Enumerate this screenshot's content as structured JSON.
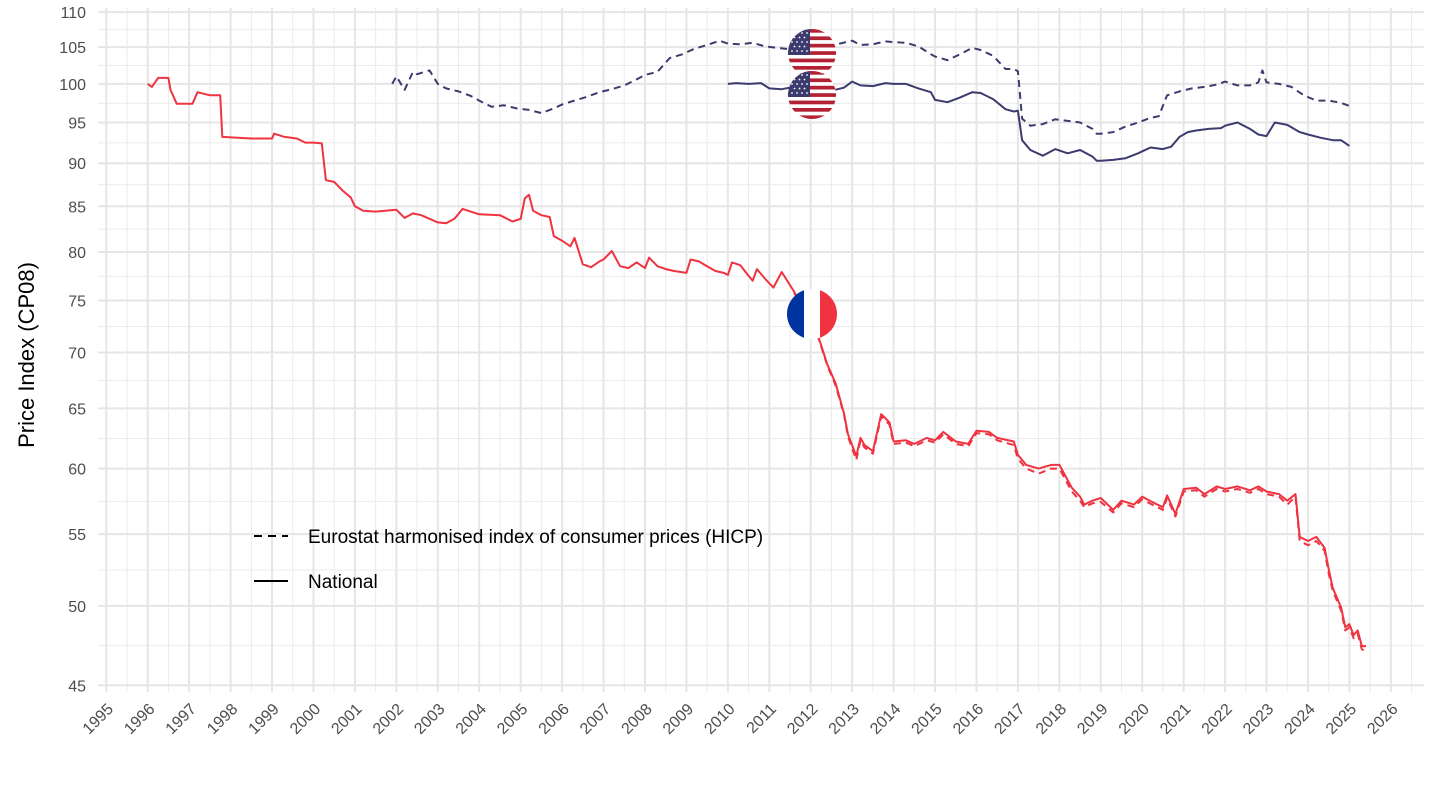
{
  "chart_data": {
    "type": "line",
    "title": "",
    "xlabel": "",
    "ylabel": "Price Index (CP08)",
    "y_scale": "log",
    "xlim": [
      1994.8,
      2026.8
    ],
    "ylim": [
      44.6,
      110.6
    ],
    "x_ticks": [
      1995,
      1996,
      1997,
      1998,
      1999,
      2000,
      2001,
      2002,
      2003,
      2004,
      2005,
      2006,
      2007,
      2008,
      2009,
      2010,
      2011,
      2012,
      2013,
      2014,
      2015,
      2016,
      2017,
      2018,
      2019,
      2020,
      2021,
      2022,
      2023,
      2024,
      2025,
      2026
    ],
    "x_tick_labels": [
      "1995",
      "1996",
      "1997",
      "1998",
      "1999",
      "2000",
      "2001",
      "2002",
      "2003",
      "2004",
      "2005",
      "2006",
      "2007",
      "2008",
      "2009",
      "2010",
      "2011",
      "2012",
      "2013",
      "2014",
      "2015",
      "2016",
      "2017",
      "2018",
      "2019",
      "2020",
      "2021",
      "2022",
      "2023",
      "2024",
      "2025",
      "2026"
    ],
    "y_ticks": [
      45,
      50,
      55,
      60,
      65,
      70,
      75,
      80,
      85,
      90,
      95,
      100,
      105,
      110
    ],
    "y_tick_labels": [
      "45",
      "50",
      "55",
      "60",
      "65",
      "70",
      "75",
      "80",
      "85",
      "90",
      "95",
      "100",
      "105",
      "110"
    ],
    "legend": {
      "position": "inside-bottom-left",
      "entries": [
        {
          "label": "Eurostat harmonised index of consumer prices (HICP)",
          "linetype": "dashed"
        },
        {
          "label": "National",
          "linetype": "solid"
        }
      ]
    },
    "annotations": [
      {
        "type": "flag",
        "name": "United States",
        "x": 2012.0,
        "y": 104.5
      },
      {
        "type": "flag",
        "name": "United States",
        "x": 2012.0,
        "y": 100.0
      },
      {
        "type": "flag",
        "name": "France",
        "x": 2012.0,
        "y": 74.0
      }
    ],
    "series": [
      {
        "name": "France - National",
        "country": "France",
        "linetype": "solid",
        "color": "#ef3340",
        "x": [
          1996.0,
          1996.1,
          1996.25,
          1996.5,
          1996.55,
          1996.7,
          1997.0,
          1997.08,
          1997.2,
          1997.5,
          1997.75,
          1997.8,
          1998.5,
          1999.0,
          1999.05,
          1999.3,
          1999.6,
          1999.8,
          2000.0,
          2000.2,
          2000.3,
          2000.5,
          2000.7,
          2000.9,
          2001.0,
          2001.2,
          2001.5,
          2002.0,
          2002.2,
          2002.4,
          2002.6,
          2003.0,
          2003.2,
          2003.4,
          2003.6,
          2004.0,
          2004.5,
          2004.8,
          2005.0,
          2005.1,
          2005.2,
          2005.3,
          2005.5,
          2005.7,
          2005.8,
          2006.0,
          2006.2,
          2006.3,
          2006.5,
          2006.7,
          2006.9,
          2007.0,
          2007.2,
          2007.4,
          2007.6,
          2007.8,
          2008.0,
          2008.1,
          2008.3,
          2008.5,
          2008.7,
          2009.0,
          2009.1,
          2009.3,
          2009.5,
          2009.7,
          2009.9,
          2010.0,
          2010.1,
          2010.3,
          2010.5,
          2010.6,
          2010.7,
          2010.9,
          2011.1,
          2011.3,
          2011.6,
          2011.9,
          2012.2,
          2012.4,
          2012.6,
          2012.8,
          2012.9,
          2013.1,
          2013.2,
          2013.3,
          2013.5,
          2013.7,
          2013.9,
          2014.0,
          2014.3,
          2014.5,
          2014.8,
          2015.0,
          2015.2,
          2015.5,
          2015.8,
          2016.0,
          2016.3,
          2016.5,
          2016.9,
          2017.0,
          2017.2,
          2017.5,
          2017.8,
          2018.0,
          2018.3,
          2018.5,
          2018.6,
          2018.8,
          2019.0,
          2019.3,
          2019.5,
          2019.8,
          2020.0,
          2020.3,
          2020.5,
          2020.6,
          2020.8,
          2021.0,
          2021.3,
          2021.5,
          2021.8,
          2022.0,
          2022.3,
          2022.6,
          2022.8,
          2023.0,
          2023.3,
          2023.5,
          2023.7,
          2023.8,
          2024.0,
          2024.2,
          2024.4,
          2024.5,
          2024.6,
          2024.8,
          2024.9,
          2025.0,
          2025.1,
          2025.2,
          2025.3,
          2025.4
        ],
        "y": [
          100.0,
          99.6,
          100.8,
          100.8,
          99.2,
          97.4,
          97.4,
          97.4,
          98.9,
          98.5,
          98.5,
          93.2,
          93.0,
          93.0,
          93.6,
          93.2,
          93.0,
          92.5,
          92.5,
          92.4,
          88.0,
          87.8,
          86.8,
          86.0,
          85.0,
          84.5,
          84.4,
          84.6,
          83.7,
          84.2,
          84.0,
          83.2,
          83.1,
          83.6,
          84.7,
          84.1,
          84.0,
          83.3,
          83.6,
          85.9,
          86.3,
          84.5,
          84.0,
          83.8,
          81.7,
          81.2,
          80.6,
          81.5,
          78.7,
          78.4,
          79.0,
          79.2,
          80.1,
          78.5,
          78.3,
          78.9,
          78.3,
          79.4,
          78.5,
          78.2,
          78.0,
          77.8,
          79.2,
          79.0,
          78.5,
          78.0,
          77.8,
          77.6,
          78.9,
          78.6,
          77.5,
          77.0,
          78.2,
          77.2,
          76.3,
          77.9,
          75.9,
          73.5,
          71.3,
          68.9,
          67.2,
          64.6,
          62.8,
          61.0,
          62.5,
          61.9,
          61.4,
          64.5,
          63.8,
          62.2,
          62.3,
          62.0,
          62.5,
          62.3,
          63.0,
          62.2,
          62.0,
          63.1,
          63.0,
          62.5,
          62.2,
          61.1,
          60.3,
          60.0,
          60.3,
          60.3,
          58.5,
          57.8,
          57.2,
          57.5,
          57.7,
          56.8,
          57.5,
          57.2,
          57.8,
          57.3,
          57.0,
          57.9,
          56.5,
          58.4,
          58.5,
          58.0,
          58.6,
          58.4,
          58.6,
          58.3,
          58.6,
          58.2,
          58.0,
          57.5,
          58.0,
          54.8,
          54.5,
          54.8,
          54.0,
          52.5,
          51.2,
          49.9,
          48.6,
          48.8,
          48.1,
          48.4,
          47.4,
          47.4
        ]
      },
      {
        "name": "France - HICP",
        "country": "France",
        "linetype": "dashed",
        "color": "#ef3340",
        "x": [
          2011.6,
          2011.9,
          2012.2,
          2012.4,
          2012.6,
          2012.8,
          2012.9,
          2013.1,
          2013.2,
          2013.3,
          2013.5,
          2013.7,
          2013.9,
          2014.0,
          2014.3,
          2014.5,
          2014.8,
          2015.0,
          2015.2,
          2015.5,
          2015.8,
          2016.0,
          2016.3,
          2016.5,
          2016.9,
          2017.0,
          2017.2,
          2017.5,
          2017.8,
          2018.0,
          2018.3,
          2018.5,
          2018.6,
          2018.8,
          2019.0,
          2019.3,
          2019.5,
          2019.8,
          2020.0,
          2020.3,
          2020.5,
          2020.6,
          2020.8,
          2021.0,
          2021.3,
          2021.5,
          2021.8,
          2022.0,
          2022.3,
          2022.6,
          2022.8,
          2023.0,
          2023.3,
          2023.5,
          2023.7,
          2023.8,
          2024.0,
          2024.2,
          2024.4,
          2024.5,
          2024.6,
          2024.8,
          2024.9,
          2025.0,
          2025.1,
          2025.2,
          2025.3,
          2025.4
        ],
        "y": [
          75.8,
          73.5,
          71.2,
          68.8,
          67.0,
          64.5,
          62.6,
          60.7,
          62.3,
          61.7,
          61.2,
          64.3,
          63.6,
          62.0,
          62.1,
          61.8,
          62.3,
          62.1,
          62.8,
          62.0,
          61.8,
          62.9,
          62.8,
          62.3,
          61.9,
          60.8,
          60.0,
          59.6,
          60.0,
          60.0,
          58.2,
          57.5,
          57.0,
          57.3,
          57.4,
          56.6,
          57.3,
          57.0,
          57.6,
          57.1,
          56.8,
          57.7,
          56.3,
          58.2,
          58.3,
          57.8,
          58.4,
          58.2,
          58.4,
          58.1,
          58.4,
          58.0,
          57.8,
          57.2,
          57.8,
          54.5,
          54.2,
          54.5,
          53.8,
          52.2,
          51.0,
          49.7,
          48.4,
          48.6,
          47.9,
          48.2,
          47.2,
          47.1
        ]
      },
      {
        "name": "United States - National",
        "country": "United States",
        "linetype": "solid",
        "color": "#3c3b6e",
        "x": [
          2010.0,
          2010.2,
          2010.5,
          2010.8,
          2011.0,
          2011.3,
          2011.6,
          2011.9,
          2012.2,
          2012.5,
          2012.8,
          2013.0,
          2013.2,
          2013.5,
          2013.8,
          2014.0,
          2014.3,
          2014.6,
          2014.9,
          2015.0,
          2015.3,
          2015.6,
          2015.9,
          2016.1,
          2016.4,
          2016.7,
          2016.9,
          2017.0,
          2017.1,
          2017.3,
          2017.6,
          2017.9,
          2018.2,
          2018.5,
          2018.8,
          2018.9,
          2019.0,
          2019.3,
          2019.6,
          2019.9,
          2020.2,
          2020.5,
          2020.7,
          2020.9,
          2021.1,
          2021.3,
          2021.6,
          2021.9,
          2022.0,
          2022.3,
          2022.6,
          2022.8,
          2023.0,
          2023.2,
          2023.5,
          2023.8,
          2024.0,
          2024.3,
          2024.6,
          2024.8,
          2025.0
        ],
        "y": [
          100.0,
          100.1,
          100.0,
          100.1,
          99.4,
          99.3,
          99.6,
          99.3,
          99.2,
          99.1,
          99.5,
          100.3,
          99.8,
          99.7,
          100.1,
          100.0,
          100.0,
          99.4,
          98.9,
          97.9,
          97.6,
          98.2,
          98.9,
          98.8,
          98.0,
          96.7,
          96.4,
          96.5,
          92.8,
          91.6,
          90.9,
          91.7,
          91.2,
          91.6,
          90.8,
          90.3,
          90.3,
          90.4,
          90.6,
          91.2,
          91.9,
          91.7,
          92.0,
          93.2,
          93.8,
          94.0,
          94.2,
          94.3,
          94.6,
          95.0,
          94.2,
          93.5,
          93.3,
          95.0,
          94.7,
          93.8,
          93.5,
          93.1,
          92.8,
          92.8,
          92.1
        ]
      },
      {
        "name": "United States - HICP",
        "country": "United States",
        "linetype": "dashed",
        "color": "#3c3b6e",
        "x": [
          2001.9,
          2002.0,
          2002.2,
          2002.4,
          2002.5,
          2002.8,
          2003.0,
          2003.2,
          2003.5,
          2003.8,
          2004.0,
          2004.3,
          2004.6,
          2004.9,
          2005.2,
          2005.5,
          2005.8,
          2006.0,
          2006.3,
          2006.6,
          2006.9,
          2007.2,
          2007.5,
          2007.8,
          2008.0,
          2008.3,
          2008.6,
          2008.9,
          2009.2,
          2009.5,
          2009.8,
          2010.0,
          2010.3,
          2010.6,
          2010.9,
          2011.2,
          2011.5,
          2011.8,
          2012.1,
          2012.4,
          2012.7,
          2013.0,
          2013.2,
          2013.5,
          2013.8,
          2014.0,
          2014.3,
          2014.6,
          2014.9,
          2015.0,
          2015.3,
          2015.6,
          2015.9,
          2016.1,
          2016.4,
          2016.7,
          2016.9,
          2017.0,
          2017.1,
          2017.3,
          2017.6,
          2017.9,
          2018.2,
          2018.5,
          2018.8,
          2018.9,
          2019.0,
          2019.3,
          2019.6,
          2019.9,
          2020.2,
          2020.4,
          2020.6,
          2020.9,
          2021.2,
          2021.5,
          2021.8,
          2022.0,
          2022.3,
          2022.6,
          2022.8,
          2022.9,
          2023.0,
          2023.3,
          2023.6,
          2023.9,
          2024.2,
          2024.5,
          2024.8,
          2025.0
        ],
        "y": [
          100.0,
          101.0,
          99.2,
          101.6,
          101.3,
          101.8,
          100.0,
          99.4,
          99.0,
          98.4,
          97.8,
          97.0,
          97.2,
          96.8,
          96.6,
          96.2,
          96.8,
          97.3,
          97.8,
          98.3,
          98.9,
          99.3,
          99.8,
          100.6,
          101.2,
          101.6,
          103.5,
          104.0,
          104.8,
          105.3,
          105.9,
          105.5,
          105.4,
          105.6,
          105.1,
          104.9,
          104.7,
          104.5,
          104.9,
          105.0,
          105.5,
          105.9,
          105.3,
          105.4,
          105.8,
          105.7,
          105.6,
          105.1,
          104.0,
          103.7,
          103.2,
          104.0,
          104.9,
          104.6,
          103.8,
          102.0,
          102.0,
          101.7,
          95.5,
          94.6,
          94.8,
          95.4,
          95.2,
          95.0,
          94.2,
          93.6,
          93.6,
          93.8,
          94.5,
          95.0,
          95.6,
          95.8,
          98.5,
          99.0,
          99.4,
          99.6,
          99.9,
          100.3,
          99.8,
          99.8,
          100.2,
          101.8,
          100.2,
          100.0,
          99.6,
          98.5,
          97.8,
          97.8,
          97.5,
          97.1
        ]
      }
    ]
  }
}
